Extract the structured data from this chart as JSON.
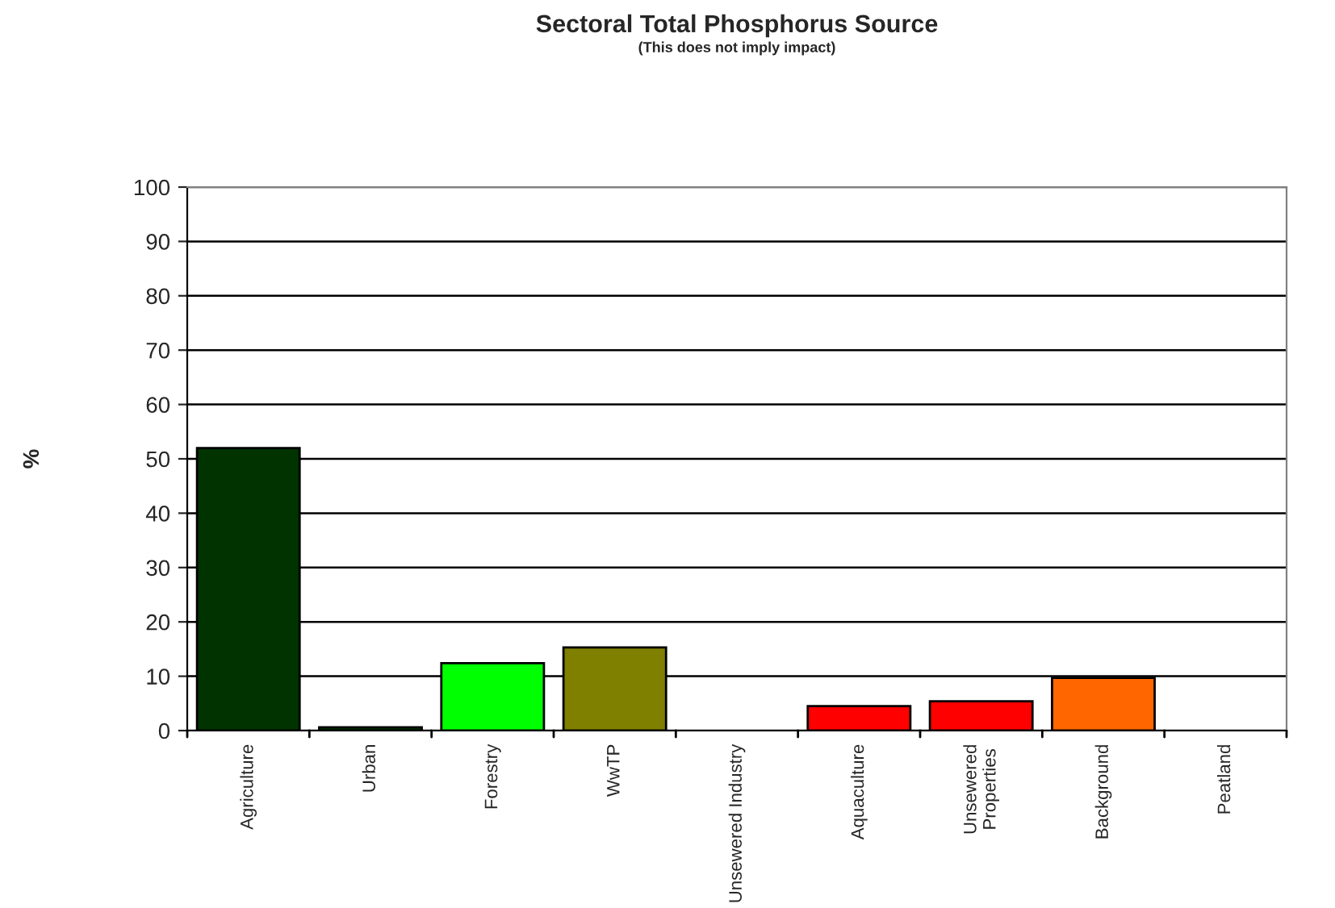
{
  "chart_data": {
    "type": "bar",
    "title": "Sectoral Total Phosphorus Source",
    "subtitle": "(This does not imply impact)",
    "ylabel": "%",
    "categories": [
      "Agriculture",
      "Urban",
      "Forestry",
      "WwTP",
      "Unsewered Industry",
      "Aquaculture",
      "Unsewered\nProperties",
      "Background",
      "Peatland"
    ],
    "values": [
      52,
      0.6,
      12.4,
      15.3,
      0,
      4.5,
      5.4,
      9.7,
      0
    ],
    "colors": [
      "#003300",
      "#003300",
      "#00ff00",
      "#808000",
      null,
      "#ff0000",
      "#ff0000",
      "#ff6600",
      null
    ],
    "ylim": [
      0,
      100
    ],
    "yticks": [
      0,
      10,
      20,
      30,
      40,
      50,
      60,
      70,
      80,
      90,
      100
    ],
    "grid": "y",
    "legend": false
  }
}
